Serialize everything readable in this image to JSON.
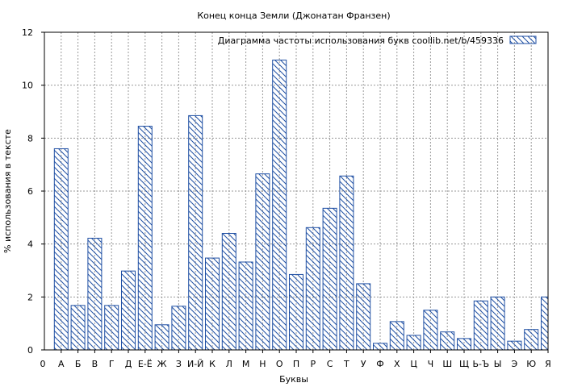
{
  "chart_data": {
    "type": "bar",
    "title": "Конец конца Земли (Джонатан Франзен)",
    "xlabel": "Буквы",
    "ylabel": "% использования в тексте",
    "ylim": [
      0,
      12
    ],
    "yticks": [
      0,
      2,
      4,
      6,
      8,
      10,
      12
    ],
    "x_origin_label": "0",
    "grid": true,
    "legend_position": "top-right",
    "series": [
      {
        "name": "Диаграмма частоты использования букв  coollib.net/b/459336",
        "color": "#1f4fa3",
        "values": [
          7.6,
          1.68,
          4.22,
          1.68,
          2.98,
          8.45,
          0.95,
          1.65,
          8.85,
          3.47,
          4.4,
          3.32,
          6.65,
          10.95,
          2.85,
          4.62,
          5.35,
          6.57,
          2.5,
          0.25,
          1.07,
          0.55,
          1.5,
          0.68,
          0.43,
          1.85,
          2.0,
          0.33,
          0.77,
          2.0
        ]
      }
    ],
    "categories": [
      "А",
      "Б",
      "В",
      "Г",
      "Д",
      "Е-Ё",
      "Ж",
      "З",
      "И-Й",
      "К",
      "Л",
      "М",
      "Н",
      "О",
      "П",
      "Р",
      "С",
      "Т",
      "У",
      "Ф",
      "Х",
      "Ц",
      "Ч",
      "Ш",
      "Щ",
      "Ь-Ъ",
      "Ы",
      "Э",
      "Ю",
      "Я"
    ]
  }
}
